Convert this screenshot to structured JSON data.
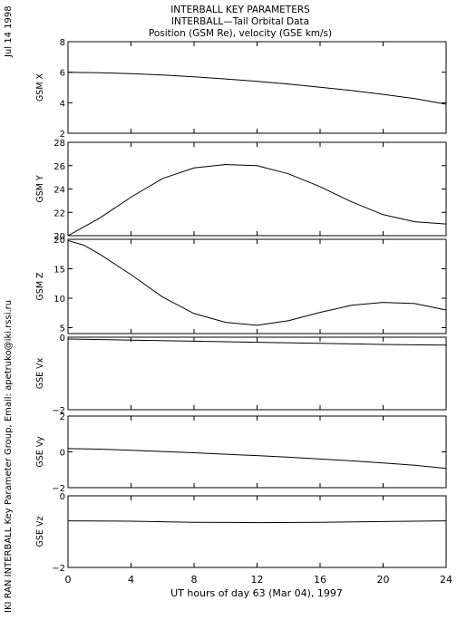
{
  "header": {
    "title": "INTERBALL KEY PARAMETERS",
    "subtitle": "INTERBALL—Tail Orbital Data",
    "units": "Position (GSM Re), velocity (GSE km/s)"
  },
  "side_labels": {
    "date": "Jul 14 1998",
    "credit": "IKI RAN INTERBALL Key Parameter Group, Email: apetruko@iki.rssi.ru"
  },
  "chart_data": {
    "type": "line",
    "x_ticks": [
      "0",
      "4",
      "8",
      "12",
      "16",
      "20",
      "24"
    ],
    "xlabel": "UT hours of day  63 (Mar 04), 1997",
    "xlim": [
      0,
      24
    ],
    "grid": false,
    "panels": [
      {
        "ylabel": "GSM X",
        "ylim": [
          2,
          8
        ],
        "y_ticks": [
          "2",
          "4",
          "6",
          "8"
        ],
        "series": [
          {
            "x": [
              0,
              2,
              4,
              6,
              8,
              10,
              12,
              14,
              16,
              18,
              20,
              22,
              24
            ],
            "y": [
              6.0,
              5.97,
              5.9,
              5.82,
              5.7,
              5.56,
              5.4,
              5.22,
              5.02,
              4.8,
              4.55,
              4.27,
              3.9
            ]
          }
        ]
      },
      {
        "ylabel": "GSM Y",
        "ylim": [
          20,
          28
        ],
        "y_ticks": [
          "20",
          "22",
          "24",
          "26",
          "28"
        ],
        "series": [
          {
            "x": [
              0,
              2,
              4,
              6,
              8,
              10,
              12,
              14,
              16,
              18,
              20,
              22,
              24
            ],
            "y": [
              20.0,
              21.5,
              23.3,
              24.9,
              25.8,
              26.1,
              26.0,
              25.3,
              24.2,
              22.9,
              21.8,
              21.2,
              21.0
            ]
          }
        ]
      },
      {
        "ylabel": "GSM Z",
        "ylim": [
          4,
          20
        ],
        "y_ticks": [
          "5",
          "10",
          "15",
          "20"
        ],
        "series": [
          {
            "x": [
              0,
              1,
              2,
              4,
              6,
              8,
              10,
              12,
              14,
              16,
              18,
              20,
              22,
              24
            ],
            "y": [
              19.8,
              19.0,
              17.5,
              14.0,
              10.2,
              7.4,
              5.9,
              5.4,
              6.2,
              7.6,
              8.8,
              9.3,
              9.1,
              8.0
            ]
          }
        ]
      },
      {
        "ylabel": "GSE Vx",
        "ylim": [
          -2,
          0
        ],
        "y_ticks": [
          "−2",
          "0"
        ],
        "series": [
          {
            "x": [
              0,
              4,
              8,
              12,
              16,
              20,
              24
            ],
            "y": [
              -0.05,
              -0.08,
              -0.11,
              -0.14,
              -0.17,
              -0.2,
              -0.22
            ]
          }
        ]
      },
      {
        "ylabel": "GSE Vy",
        "ylim": [
          -2,
          2
        ],
        "y_ticks": [
          "−2",
          "0",
          "2"
        ],
        "series": [
          {
            "x": [
              0,
              2,
              4,
              6,
              8,
              10,
              12,
              14,
              16,
              18,
              20,
              22,
              24
            ],
            "y": [
              0.18,
              0.15,
              0.09,
              0.02,
              -0.05,
              -0.13,
              -0.21,
              -0.3,
              -0.4,
              -0.5,
              -0.62,
              -0.75,
              -0.92
            ]
          }
        ]
      },
      {
        "ylabel": "GSE Vz",
        "ylim": [
          -2,
          0
        ],
        "y_ticks": [
          "−2",
          "0"
        ],
        "series": [
          {
            "x": [
              0,
              4,
              8,
              12,
              16,
              20,
              24
            ],
            "y": [
              -0.7,
              -0.71,
              -0.74,
              -0.75,
              -0.74,
              -0.72,
              -0.7
            ]
          }
        ]
      }
    ]
  }
}
